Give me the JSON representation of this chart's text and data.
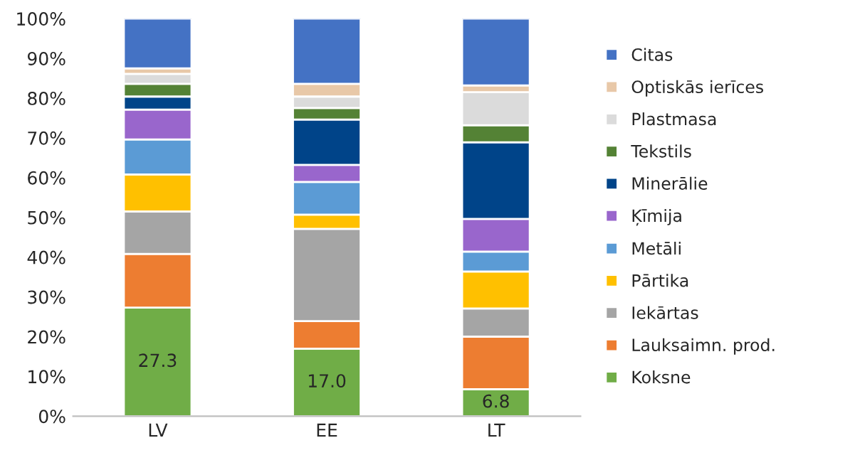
{
  "chart_data": {
    "type": "bar",
    "stacked": true,
    "categories": [
      "LV",
      "EE",
      "LT"
    ],
    "ylim": [
      0,
      100
    ],
    "yticks": [
      {
        "value": 0,
        "label": "0%"
      },
      {
        "value": 10,
        "label": "10%"
      },
      {
        "value": 20,
        "label": "20%"
      },
      {
        "value": 30,
        "label": "30%"
      },
      {
        "value": 40,
        "label": "40%"
      },
      {
        "value": 50,
        "label": "50%"
      },
      {
        "value": 60,
        "label": "60%"
      },
      {
        "value": 70,
        "label": "70%"
      },
      {
        "value": 80,
        "label": "80%"
      },
      {
        "value": 90,
        "label": "90%"
      },
      {
        "value": 100,
        "label": "100%"
      }
    ],
    "grid": false,
    "legend": "right",
    "series": [
      {
        "name": "Koksne",
        "color": "#70ad47",
        "values": [
          27.3,
          17.0,
          6.8
        ],
        "value_labels": [
          "27.3",
          "17.0",
          "6.8"
        ]
      },
      {
        "name": "Lauksaimn. prod.",
        "color": "#ed7d31",
        "values": [
          13.5,
          6.9,
          13.2
        ]
      },
      {
        "name": "Iekārtas",
        "color": "#a5a5a5",
        "values": [
          10.7,
          23.2,
          7.1
        ]
      },
      {
        "name": "Pārtika",
        "color": "#ffc000",
        "values": [
          9.3,
          3.6,
          9.3
        ]
      },
      {
        "name": "Metāli",
        "color": "#5b9bd5",
        "values": [
          8.8,
          8.2,
          5.0
        ]
      },
      {
        "name": "Ķīmija",
        "color": "#9966cc",
        "values": [
          7.5,
          4.3,
          8.2
        ]
      },
      {
        "name": "Minerālie",
        "color": "#004489",
        "values": [
          3.3,
          11.4,
          19.3
        ]
      },
      {
        "name": "Tekstils",
        "color": "#548235",
        "values": [
          3.2,
          2.9,
          4.3
        ]
      },
      {
        "name": "Plastmasa",
        "color": "#dbdbdb",
        "values": [
          2.5,
          2.9,
          8.3
        ]
      },
      {
        "name": "Optiskās ierīces",
        "color": "#e8c8a8",
        "values": [
          1.4,
          3.2,
          1.7
        ]
      },
      {
        "name": "Citas",
        "color": "#4472c4",
        "values": [
          12.5,
          16.4,
          16.8
        ]
      }
    ]
  }
}
